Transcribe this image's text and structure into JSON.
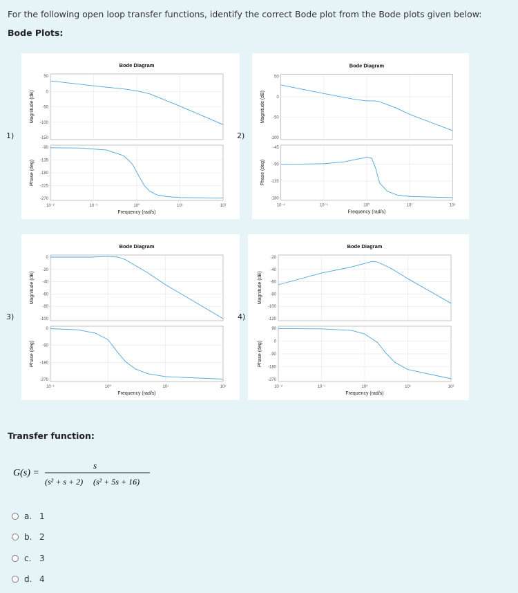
{
  "question": {
    "text": "For the following open loop transfer functions, identify the correct Bode plot from the Bode plots given below:",
    "bode_plots_heading": "Bode Plots:",
    "transfer_function_heading": "Transfer function:"
  },
  "transfer_function": {
    "lhs": "G(s) =",
    "numerator": "s",
    "denominator_factor_1": "(s² + s + 2)",
    "denominator_factor_2": "(s² + 5s + 16)"
  },
  "options": [
    {
      "letter": "a.",
      "value": "1"
    },
    {
      "letter": "b.",
      "value": "2"
    },
    {
      "letter": "c.",
      "value": "3"
    },
    {
      "letter": "d.",
      "value": "4"
    }
  ],
  "colors": {
    "page_bg": "#e6f3f7",
    "curve": "#4da3dc",
    "grid": "#e4e4e4"
  },
  "chart_data": [
    {
      "type": "line",
      "label": "1)",
      "title": "Bode Diagram",
      "xlabel": "Frequency (rad/s)",
      "x_scale": "log",
      "x_ticks": [
        "10⁻²",
        "10⁻¹",
        "10⁰",
        "10¹",
        "10²"
      ],
      "xlim": [
        0.01,
        100
      ],
      "magnitude": {
        "ylabel": "Magnitude (dB)",
        "ylim": [
          -150,
          50
        ],
        "y_ticks": [
          "50",
          "0",
          "-50",
          "-100",
          "-150"
        ],
        "x": [
          0.01,
          0.1,
          0.5,
          1,
          2,
          10,
          100
        ],
        "y": [
          34,
          18,
          8,
          2,
          -8,
          -48,
          -108
        ]
      },
      "phase": {
        "ylabel": "Phase (deg)",
        "ylim": [
          -270,
          -90
        ],
        "y_ticks": [
          "-90",
          "-135",
          "-180",
          "-225",
          "-270"
        ],
        "x": [
          0.01,
          0.05,
          0.2,
          0.5,
          0.8,
          1,
          1.5,
          2,
          3,
          5,
          10,
          100
        ],
        "y": [
          -92,
          -93,
          -100,
          -120,
          -150,
          -178,
          -225,
          -245,
          -258,
          -264,
          -267,
          -269
        ]
      }
    },
    {
      "type": "line",
      "label": "2)",
      "title": "Bode Diagram",
      "xlabel": "Frequency (rad/s)",
      "x_scale": "log",
      "x_ticks": [
        "10⁻²",
        "10⁻¹",
        "10⁰",
        "10¹",
        "10²"
      ],
      "xlim": [
        0.01,
        100
      ],
      "magnitude": {
        "ylabel": "Magnitude (dB)",
        "ylim": [
          -100,
          50
        ],
        "y_ticks": [
          "50",
          "0",
          "-50",
          "-100"
        ],
        "x": [
          0.01,
          0.1,
          0.5,
          1,
          1.5,
          2,
          5,
          10,
          100
        ],
        "y": [
          29,
          8,
          -6,
          -10,
          -10,
          -12,
          -28,
          -43,
          -83
        ]
      },
      "phase": {
        "ylabel": "Phase (deg)",
        "ylim": [
          -180,
          -45
        ],
        "y_ticks": [
          "-45",
          "-90",
          "-135",
          "-180"
        ],
        "x": [
          0.01,
          0.1,
          0.3,
          0.6,
          1,
          1.3,
          1.6,
          2,
          3,
          5,
          10,
          100
        ],
        "y": [
          -91,
          -89,
          -84,
          -77,
          -72,
          -74,
          -100,
          -140,
          -162,
          -172,
          -176,
          -179
        ]
      }
    },
    {
      "type": "line",
      "label": "3)",
      "title": "Bode Diagram",
      "xlabel": "Frequency (rad/s)",
      "x_scale": "log",
      "x_ticks": [
        "10⁻¹",
        "10⁰",
        "10¹",
        "10²"
      ],
      "xlim": [
        0.1,
        100
      ],
      "magnitude": {
        "ylabel": "Magnitude (dB)",
        "ylim": [
          -100,
          0
        ],
        "y_ticks": [
          "0",
          "-20",
          "-40",
          "-60",
          "-80",
          "-100"
        ],
        "x": [
          0.1,
          0.5,
          1,
          1.5,
          2,
          5,
          10,
          100
        ],
        "y": [
          0,
          0,
          1,
          0,
          -4,
          -26,
          -45,
          -100
        ]
      },
      "phase": {
        "ylabel": "Phase (deg)",
        "ylim": [
          -270,
          0
        ],
        "y_ticks": [
          "0",
          "-90",
          "-180",
          "-270"
        ],
        "x": [
          0.1,
          0.3,
          0.6,
          1,
          1.5,
          2,
          3,
          5,
          10,
          100
        ],
        "y": [
          -2,
          -8,
          -25,
          -60,
          -130,
          -175,
          -215,
          -240,
          -255,
          -268
        ]
      }
    },
    {
      "type": "line",
      "label": "4)",
      "title": "Bode Diagram",
      "xlabel": "Frequency (rad/s)",
      "x_scale": "log",
      "x_ticks": [
        "10⁻²",
        "10⁻¹",
        "10⁰",
        "10¹",
        "10²"
      ],
      "xlim": [
        0.01,
        100
      ],
      "magnitude": {
        "ylabel": "Magnitude (dB)",
        "ylim": [
          -120,
          -20
        ],
        "y_ticks": [
          "-20",
          "-40",
          "-60",
          "-80",
          "-100",
          "-120"
        ],
        "x": [
          0.01,
          0.1,
          0.5,
          1.5,
          2,
          4,
          10,
          100
        ],
        "y": [
          -65,
          -46,
          -36,
          -27,
          -28,
          -38,
          -55,
          -95
        ]
      },
      "phase": {
        "ylabel": "Phase (deg)",
        "ylim": [
          -270,
          90
        ],
        "y_ticks": [
          "90",
          "0",
          "-90",
          "-180",
          "-270"
        ],
        "x": [
          0.01,
          0.1,
          0.5,
          1,
          2,
          3,
          5,
          10,
          100
        ],
        "y": [
          88,
          86,
          75,
          50,
          -10,
          -80,
          -150,
          -200,
          -265
        ]
      }
    }
  ]
}
